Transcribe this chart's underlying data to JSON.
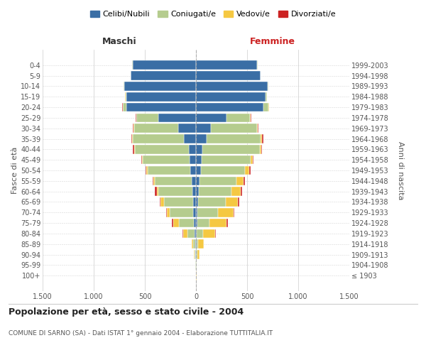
{
  "age_groups": [
    "100+",
    "95-99",
    "90-94",
    "85-89",
    "80-84",
    "75-79",
    "70-74",
    "65-69",
    "60-64",
    "55-59",
    "50-54",
    "45-49",
    "40-44",
    "35-39",
    "30-34",
    "25-29",
    "20-24",
    "15-19",
    "10-14",
    "5-9",
    "0-4"
  ],
  "birth_years": [
    "≤ 1903",
    "1904-1908",
    "1909-1913",
    "1914-1918",
    "1919-1923",
    "1924-1928",
    "1929-1933",
    "1934-1938",
    "1939-1943",
    "1944-1948",
    "1949-1953",
    "1954-1958",
    "1959-1963",
    "1964-1968",
    "1969-1973",
    "1974-1978",
    "1979-1983",
    "1984-1988",
    "1989-1993",
    "1994-1998",
    "1999-2003"
  ],
  "colors": {
    "celibi": "#3a6ea5",
    "coniugati": "#b5cc8e",
    "vedovi": "#f5c842",
    "divorziati": "#cc2222"
  },
  "maschi": {
    "celibi": [
      2,
      2,
      5,
      8,
      15,
      20,
      25,
      30,
      35,
      40,
      55,
      60,
      70,
      120,
      175,
      370,
      680,
      680,
      700,
      640,
      620
    ],
    "coniugati": [
      0,
      2,
      10,
      20,
      70,
      150,
      230,
      280,
      330,
      360,
      420,
      460,
      530,
      500,
      430,
      210,
      35,
      10,
      5,
      2,
      2
    ],
    "vedovi": [
      0,
      0,
      5,
      15,
      40,
      55,
      30,
      35,
      20,
      15,
      10,
      5,
      5,
      5,
      5,
      5,
      2,
      2,
      0,
      0,
      0
    ],
    "divorziati": [
      0,
      0,
      0,
      2,
      5,
      8,
      10,
      12,
      15,
      12,
      10,
      8,
      10,
      10,
      5,
      5,
      2,
      2,
      0,
      0,
      0
    ]
  },
  "femmine": {
    "celibi": [
      2,
      2,
      3,
      5,
      8,
      12,
      15,
      20,
      28,
      35,
      50,
      55,
      62,
      105,
      145,
      300,
      660,
      680,
      700,
      630,
      600
    ],
    "coniugati": [
      0,
      2,
      10,
      18,
      60,
      120,
      200,
      270,
      320,
      360,
      430,
      480,
      560,
      530,
      450,
      230,
      50,
      12,
      5,
      2,
      2
    ],
    "vedovi": [
      2,
      5,
      20,
      50,
      120,
      170,
      150,
      120,
      90,
      70,
      40,
      20,
      15,
      10,
      10,
      8,
      3,
      2,
      0,
      0,
      0
    ],
    "divorziati": [
      0,
      0,
      0,
      2,
      5,
      8,
      12,
      15,
      15,
      12,
      12,
      10,
      12,
      12,
      8,
      5,
      2,
      2,
      0,
      0,
      0
    ]
  },
  "xlim": 1500,
  "title_main": "Popolazione per età, sesso e stato civile - 2004",
  "title_sub": "COMUNE DI SARNO (SA) - Dati ISTAT 1° gennaio 2004 - Elaborazione TUTTITALIA.IT",
  "xlabel_maschi": "Maschi",
  "xlabel_femmine": "Femmine",
  "ylabel_left": "Fasce di età",
  "ylabel_right": "Anni di nascita",
  "legend_labels": [
    "Celibi/Nubili",
    "Coniugati/e",
    "Vedovi/e",
    "Divorziati/e"
  ],
  "background_color": "#ffffff",
  "grid_color": "#cccccc",
  "xticks": [
    -1500,
    -1000,
    -500,
    0,
    500,
    1000,
    1500
  ],
  "xtick_labels": [
    "1.500",
    "1.000",
    "500",
    "0",
    "500",
    "1.000",
    "1.500"
  ]
}
